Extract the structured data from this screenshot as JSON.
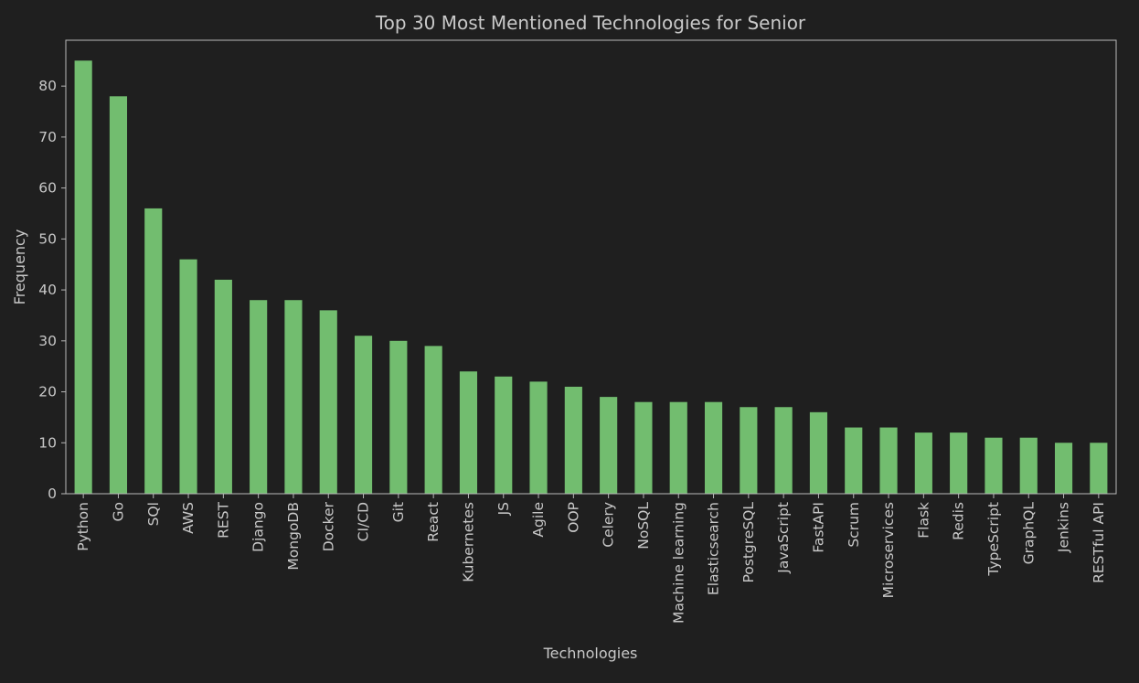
{
  "chart_data": {
    "type": "bar",
    "title": "Top 30 Most Mentioned Technologies for Senior",
    "xlabel": "Technologies",
    "ylabel": "Frequency",
    "ylim": [
      0,
      89
    ],
    "yticks": [
      0,
      10,
      20,
      30,
      40,
      50,
      60,
      70,
      80
    ],
    "grid": false,
    "colors": {
      "bar": "#72bd6f",
      "background": "#1f1f1f",
      "text": "#c8c8c8",
      "axes": "#b8b8b8"
    },
    "categories": [
      "Python",
      "Go",
      "SQl",
      "AWS",
      "REST",
      "Django",
      "MongoDB",
      "Docker",
      "CI/CD",
      "Git",
      "React",
      "Kubernetes",
      "JS",
      "Agile",
      "OOP",
      "Celery",
      "NoSQL",
      "Machine learning",
      "Elasticsearch",
      "PostgreSQL",
      "JavaScript",
      "FastAPI",
      "Scrum",
      "Microservices",
      "Flask",
      "Redis",
      "TypeScript",
      "GraphQL",
      "Jenkins",
      "RESTful API"
    ],
    "values": [
      85,
      78,
      56,
      46,
      42,
      38,
      38,
      36,
      31,
      30,
      29,
      24,
      23,
      22,
      21,
      19,
      18,
      18,
      18,
      17,
      17,
      16,
      13,
      13,
      12,
      12,
      11,
      11,
      10,
      10
    ]
  }
}
